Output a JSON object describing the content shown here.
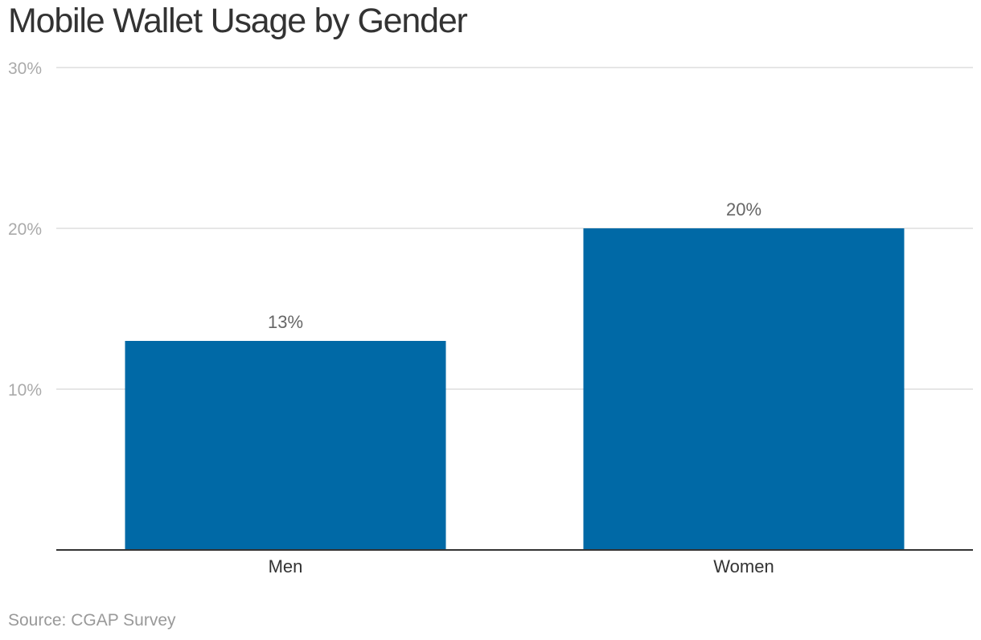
{
  "chart_data": {
    "type": "bar",
    "title": "Mobile Wallet Usage by Gender",
    "categories": [
      "Men",
      "Women"
    ],
    "values": [
      13,
      20
    ],
    "value_labels": [
      "13%",
      "20%"
    ],
    "xlabel": "",
    "ylabel": "",
    "ylim": [
      0,
      30
    ],
    "yticks": [
      10,
      20,
      30
    ],
    "ytick_labels": [
      "10%",
      "20%",
      "30%"
    ],
    "grid": true,
    "legend": "none",
    "colors": {
      "bar": "#0069a6",
      "grid": "#dddddd",
      "axis": "#333333"
    }
  },
  "source": "Source: CGAP Survey"
}
